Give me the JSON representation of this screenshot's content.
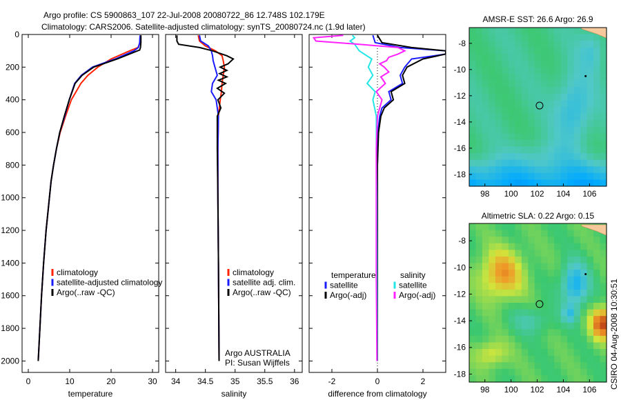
{
  "header": {
    "line1": "Argo profile: CS 5900863_107 22-Jul-2008 20080722_86 12.748S 102.179E",
    "line2": "Climatology: CARS2006. Satellite-adjusted climatology: synTS_20080724.nc (1.9d later)"
  },
  "side_label": "CSIRO 04-Aug-2008 10:30:51",
  "colors": {
    "climatology": "#ff2200",
    "satellite": "#1a1aff",
    "argo": "#000000",
    "sat_salinity": "#22e6e6",
    "argo_salinity": "#ff22ff"
  },
  "chart_data": [
    {
      "id": "temperature",
      "type": "line",
      "xlabel": "temperature",
      "xlim": [
        -1.5,
        31.5
      ],
      "ylim": [
        2070,
        0
      ],
      "xticks": [
        0,
        10,
        20,
        30
      ],
      "yticks": [
        0,
        200,
        400,
        600,
        800,
        1000,
        1200,
        1400,
        1600,
        1800,
        2000
      ],
      "legend": [
        "climatology",
        "satellite-adjusted climatology",
        "Argo(..raw -QC)"
      ],
      "legend_placement": "lower-right",
      "series": [
        {
          "name": "climatology",
          "color": "climatology",
          "y": [
            5,
            50,
            80,
            100,
            150,
            200,
            250,
            300,
            400,
            500,
            600,
            700,
            800,
            900,
            1000,
            1200,
            1400,
            1600,
            1800,
            2000
          ],
          "x": [
            27.2,
            27.0,
            26.5,
            24.5,
            20.0,
            16.8,
            14.4,
            12.7,
            10.4,
            9.0,
            7.7,
            6.8,
            6.1,
            5.5,
            5.1,
            4.3,
            3.7,
            3.2,
            2.8,
            2.4
          ]
        },
        {
          "name": "satellite-adjusted climatology",
          "color": "satellite",
          "y": [
            5,
            50,
            80,
            100,
            150,
            200,
            250,
            300,
            400,
            500,
            600,
            700,
            800,
            900,
            1000,
            1200,
            1400,
            1600,
            1800,
            2000
          ],
          "x": [
            27.0,
            26.9,
            26.6,
            25.5,
            21.0,
            15.5,
            12.8,
            11.2,
            9.9,
            8.8,
            7.6,
            6.8,
            6.1,
            5.5,
            5.1,
            4.3,
            3.7,
            3.2,
            2.8,
            2.4
          ]
        },
        {
          "name": "Argo(..raw -QC)",
          "color": "argo",
          "y": [
            5,
            50,
            80,
            95,
            100,
            150,
            200,
            250,
            300,
            400,
            500,
            600,
            700,
            800,
            900,
            1000,
            1200,
            1400,
            1600,
            1800,
            2000
          ],
          "x": [
            27.2,
            27.2,
            27.1,
            26.9,
            26.4,
            21.5,
            15.8,
            13.0,
            11.3,
            9.9,
            8.7,
            7.6,
            6.8,
            6.1,
            5.5,
            5.1,
            4.3,
            3.7,
            3.2,
            2.8,
            2.4
          ]
        }
      ]
    },
    {
      "id": "salinity",
      "type": "line",
      "xlabel": "salinity",
      "xlim": [
        33.83,
        36.13
      ],
      "ylim": [
        2070,
        0
      ],
      "xticks": [
        34,
        34.5,
        35,
        35.5,
        36
      ],
      "legend": [
        "climatology",
        "satellite adj. clim.",
        "Argo(..raw -QC)"
      ],
      "legend_placement": "lower-right",
      "annotations": [
        "Argo AUSTRALIA",
        "PI: Susan Wijffels"
      ],
      "series": [
        {
          "name": "climatology",
          "color": "climatology",
          "y": [
            5,
            40,
            70,
            100,
            130,
            160,
            200,
            250,
            300,
            350,
            400,
            500,
            700,
            1000,
            1400,
            2000
          ],
          "x": [
            34.38,
            34.4,
            34.5,
            34.67,
            34.78,
            34.8,
            34.82,
            34.8,
            34.78,
            34.77,
            34.75,
            34.72,
            34.71,
            34.71,
            34.72,
            34.73
          ]
        },
        {
          "name": "satellite adj. clim.",
          "color": "satellite",
          "y": [
            5,
            40,
            70,
            100,
            130,
            160,
            200,
            250,
            300,
            350,
            400,
            500,
            700,
            1000,
            1400,
            2000
          ],
          "x": [
            34.4,
            34.42,
            34.55,
            34.6,
            34.62,
            34.63,
            34.66,
            34.7,
            34.62,
            34.6,
            34.68,
            34.72,
            34.71,
            34.71,
            34.72,
            34.73
          ]
        },
        {
          "name": "Argo(..raw -QC)",
          "color": "argo",
          "y": [
            5,
            40,
            60,
            80,
            100,
            130,
            150,
            180,
            200,
            220,
            240,
            260,
            280,
            300,
            330,
            360,
            400,
            450,
            500,
            700,
            1000,
            1400,
            2000
          ],
          "x": [
            34.02,
            34.02,
            34.05,
            34.4,
            34.62,
            34.86,
            34.97,
            34.88,
            34.75,
            34.86,
            34.74,
            34.86,
            34.72,
            34.84,
            34.7,
            34.82,
            34.71,
            34.76,
            34.7,
            34.7,
            34.71,
            34.72,
            34.73
          ]
        }
      ]
    },
    {
      "id": "difference",
      "type": "line",
      "xlabel": "difference from climatology",
      "xlim": [
        -3,
        3
      ],
      "ylim": [
        2070,
        0
      ],
      "xticks": [
        -2,
        0,
        2
      ],
      "legend": [
        "temperature",
        "satellite",
        "Argo(-adj)",
        "salinity",
        "satellite",
        "Argo(-adj)"
      ],
      "legend_placement": "lower-left",
      "series": [
        {
          "name": "temperature satellite",
          "color": "satellite",
          "y": [
            5,
            50,
            80,
            100,
            120,
            150,
            200,
            250,
            300,
            350,
            400,
            450,
            500,
            600,
            800,
            1000,
            1200,
            1500,
            2000
          ],
          "x": [
            -0.2,
            -0.1,
            1.0,
            3.0,
            3.0,
            1.5,
            1.2,
            1.0,
            1.1,
            0.5,
            0.6,
            0.2,
            0.1,
            0.02,
            0.0,
            0.0,
            0.0,
            0.0,
            0.0
          ]
        },
        {
          "name": "temperature Argo(-adj)",
          "color": "argo",
          "y": [
            5,
            50,
            80,
            100,
            120,
            150,
            200,
            250,
            300,
            350,
            400,
            450,
            500,
            600,
            800,
            1000,
            1200,
            1500,
            2000
          ],
          "x": [
            0.0,
            0.2,
            1.5,
            3.0,
            3.0,
            2.0,
            1.3,
            1.1,
            1.2,
            0.6,
            0.7,
            0.3,
            0.15,
            0.05,
            0.0,
            0.0,
            0.0,
            0.0,
            0.0
          ]
        },
        {
          "name": "salinity satellite",
          "color": "sat_salinity",
          "y": [
            5,
            20,
            40,
            60,
            100,
            150,
            200,
            250,
            300,
            350,
            400,
            500,
            700,
            1000,
            1500,
            2000
          ],
          "x": [
            -1.1,
            -1.0,
            -1.2,
            -1.0,
            -0.8,
            -0.25,
            -0.4,
            -0.2,
            -0.45,
            -0.1,
            -0.2,
            -0.05,
            -0.05,
            -0.03,
            -0.02,
            -0.01
          ]
        },
        {
          "name": "salinity Argo(-adj)",
          "color": "argo_salinity",
          "y": [
            5,
            20,
            40,
            60,
            80,
            100,
            120,
            140,
            160,
            180,
            200,
            230,
            260,
            300,
            350,
            400,
            500,
            700,
            1000,
            1500,
            2000
          ],
          "x": [
            -1.5,
            -2.8,
            -2.7,
            -0.8,
            0.9,
            1.2,
            0.9,
            0.5,
            0.4,
            0.1,
            0.3,
            0.5,
            0.15,
            0.35,
            -0.05,
            0.2,
            0.0,
            -0.05,
            -0.05,
            -0.05,
            -0.02
          ]
        }
      ]
    },
    {
      "id": "sst-map",
      "type": "heatmap",
      "title": "AMSR-E SST: 26.6 Argo: 26.9",
      "xlim": [
        96.8,
        107.3
      ],
      "ylim": [
        -18.9,
        -6.8
      ],
      "xticks": [
        98,
        100,
        102,
        104,
        106
      ],
      "yticks": [
        -8,
        -10,
        -12,
        -14,
        -16,
        -18
      ],
      "profile_location": {
        "x": 102.179,
        "y": -12.748
      },
      "argo_marker": {
        "x": 105.7,
        "y": -10.5
      }
    },
    {
      "id": "sla-map",
      "type": "heatmap",
      "title": "Altimetric SLA: 0.22 Argo: 0.15",
      "xlim": [
        96.8,
        107.3
      ],
      "ylim": [
        -18.6,
        -6.7
      ],
      "xticks": [
        98,
        100,
        102,
        104,
        106
      ],
      "yticks": [
        -8,
        -10,
        -12,
        -14,
        -16,
        -18
      ],
      "profile_location": {
        "x": 102.179,
        "y": -12.748
      },
      "argo_marker": {
        "x": 105.7,
        "y": -10.5
      }
    }
  ]
}
